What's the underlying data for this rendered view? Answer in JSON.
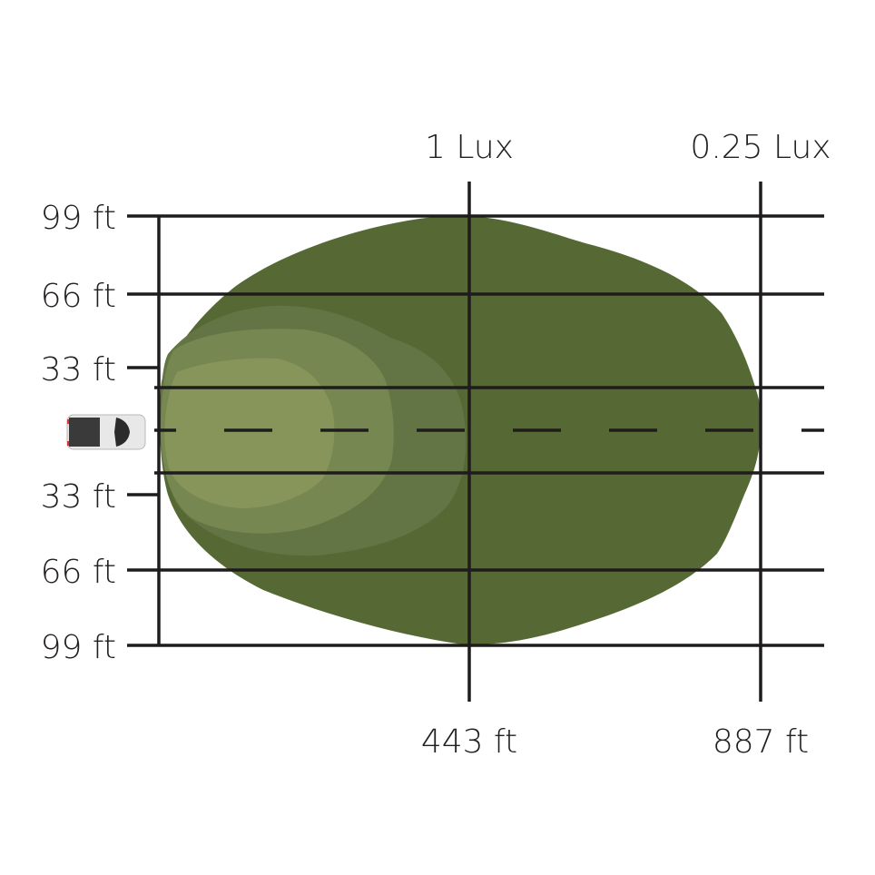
{
  "diagram": {
    "top_labels": [
      "1 Lux",
      "0.25 Lux"
    ],
    "bottom_labels": [
      "443 ft",
      "887 ft"
    ],
    "left_labels": [
      "99 ft",
      "66 ft",
      "33 ft",
      "33 ft",
      "66 ft",
      "99 ft"
    ],
    "vehicle_icon": "pickup-truck-top-view",
    "colors": {
      "zone_outer": "#566934",
      "zone_2": "#637544",
      "zone_3": "#778751",
      "zone_inner": "#88955a",
      "lines": "#1e1c1d"
    }
  }
}
